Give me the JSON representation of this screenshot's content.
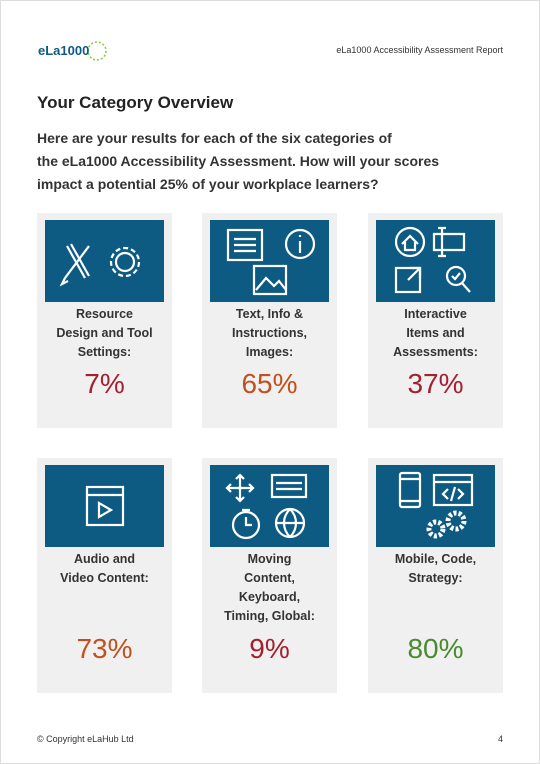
{
  "header": {
    "logo": "eLa1000",
    "report_title": "eLa1000 Accessibility Assessment Report"
  },
  "title": "Your Category Overview",
  "intro": [
    "Here are your results for each of the six categories of",
    "the eLa1000 Accessibility Assessment. How will your scores",
    "impact a potential 25% of your workplace learners?"
  ],
  "cards": [
    {
      "label": [
        "Resource",
        "Design and Tool",
        "Settings:"
      ],
      "score": "7%",
      "color": "#a3202f"
    },
    {
      "label": [
        "Text, Info &",
        "Instructions,",
        "Images:"
      ],
      "score": "65%",
      "color": "#c2501c"
    },
    {
      "label": [
        "Interactive",
        "Items and",
        "Assessments:"
      ],
      "score": "37%",
      "color": "#a3202f"
    },
    {
      "label": [
        "Audio and",
        "Video Content:"
      ],
      "score": "73%",
      "color": "#c2501c"
    },
    {
      "label": [
        "Moving",
        "Content,",
        "Keyboard,",
        "Timing, Global:"
      ],
      "score": "9%",
      "color": "#a3202f"
    },
    {
      "label": [
        "Mobile, Code,",
        "Strategy:"
      ],
      "score": "80%",
      "color": "#4a8a2e"
    }
  ],
  "footer": {
    "copyright": "© Copyright eLaHub Ltd",
    "page": "4"
  }
}
